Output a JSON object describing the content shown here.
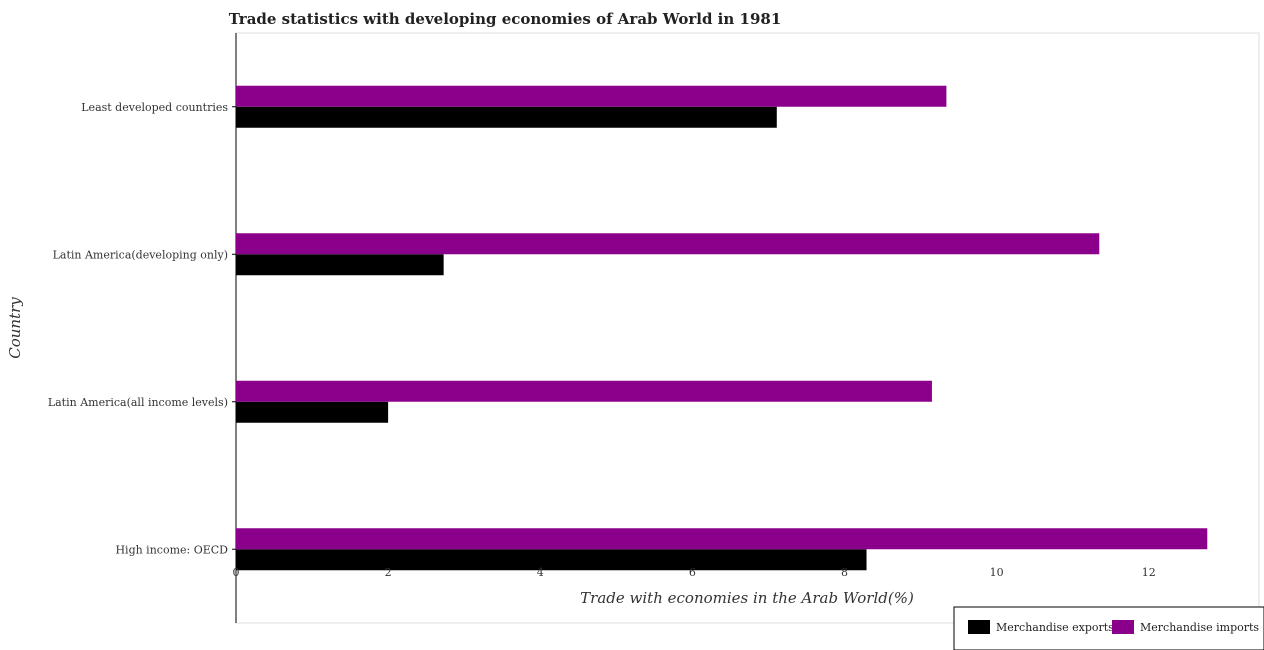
{
  "chart_data": {
    "type": "bar",
    "orientation": "horizontal",
    "title": "Trade statistics with developing economies of Arab World in 1981",
    "xlabel": "Trade with economies in the Arab World(%)",
    "ylabel": "Country",
    "xlim": [
      0,
      13.45
    ],
    "xticks": [
      0,
      2,
      4,
      6,
      8,
      10,
      12
    ],
    "categories": [
      "High income: OECD",
      "Latin America(all income levels)",
      "Latin America(developing only)",
      "Least developed countries"
    ],
    "series": [
      {
        "name": "Merchandise exports",
        "color": "#000000",
        "values": [
          8.29,
          2.0,
          2.73,
          7.11
        ]
      },
      {
        "name": "Merchandise imports",
        "color": "#8b008b",
        "values": [
          12.77,
          9.15,
          11.35,
          9.34
        ]
      }
    ],
    "grid": false,
    "legend_position": "bottom-right"
  }
}
